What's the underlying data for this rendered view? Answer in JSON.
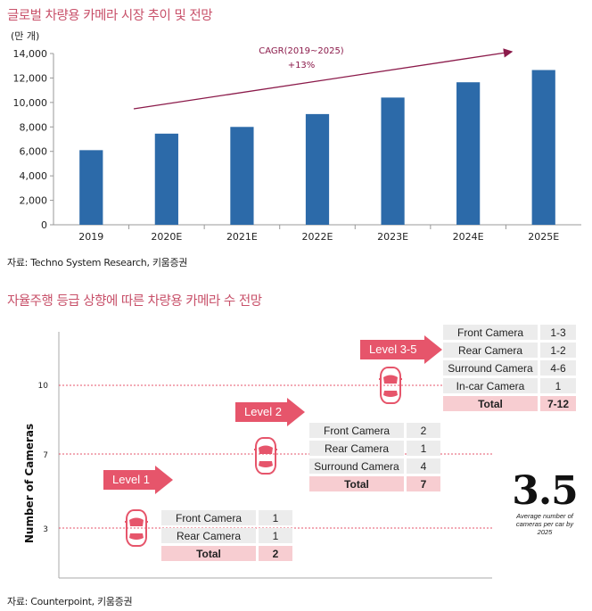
{
  "chart1": {
    "heading": "글로벌 차량용 카메라 시장 추이 및 전망",
    "unit_label": "(만 개)",
    "source": "자료: Techno System Research, 키움증권",
    "annotation": {
      "line1": "CAGR(2019~2025)",
      "line2": "+13%"
    }
  },
  "chart2": {
    "heading": "자율주행 등급 상향에 따른 차량용 카메라 수 전망",
    "ylabel": "Number of Cameras",
    "y_ticks": [
      "10",
      "7",
      "3"
    ],
    "source": "자료: Counterpoint, 키움증권",
    "levels": [
      {
        "label": "Level 1",
        "rows": [
          {
            "name": "Front Camera",
            "count": "1"
          },
          {
            "name": "Rear Camera",
            "count": "1"
          }
        ],
        "total_label": "Total",
        "total": "2"
      },
      {
        "label": "Level 2",
        "rows": [
          {
            "name": "Front Camera",
            "count": "2"
          },
          {
            "name": "Rear Camera",
            "count": "1"
          },
          {
            "name": "Surround Camera",
            "count": "4"
          }
        ],
        "total_label": "Total",
        "total": "7"
      },
      {
        "label": "Level 3-5",
        "rows": [
          {
            "name": "Front Camera",
            "count": "1-3"
          },
          {
            "name": "Rear Camera",
            "count": "1-2"
          },
          {
            "name": "Surround Camera",
            "count": "4-6"
          },
          {
            "name": "In-car Camera",
            "count": "1"
          }
        ],
        "total_label": "Total",
        "total": "7-12"
      }
    ],
    "highlight": {
      "value": "3.5",
      "caption": "Average number of cameras per car by 2025"
    }
  },
  "colors": {
    "bar": "#2c6aa9",
    "accent": "#e6556b",
    "heading": "#c8516a",
    "trend": "#8b1a4a"
  },
  "chart_data": [
    {
      "type": "bar",
      "title": "글로벌 차량용 카메라 시장 추이 및 전망",
      "ylabel": "(만 개)",
      "xlabel": "",
      "categories": [
        "2019",
        "2020E",
        "2021E",
        "2022E",
        "2023E",
        "2024E",
        "2025E"
      ],
      "values": [
        6100,
        7450,
        8000,
        9050,
        10400,
        11650,
        12650
      ],
      "ylim": [
        0,
        14000
      ],
      "yticks": [
        0,
        2000,
        4000,
        6000,
        8000,
        10000,
        12000,
        14000
      ],
      "ytick_labels": [
        "0",
        "2,000",
        "4,000",
        "6,000",
        "8,000",
        "10,000",
        "12,000",
        "14,000"
      ],
      "grid": false
    }
  ]
}
